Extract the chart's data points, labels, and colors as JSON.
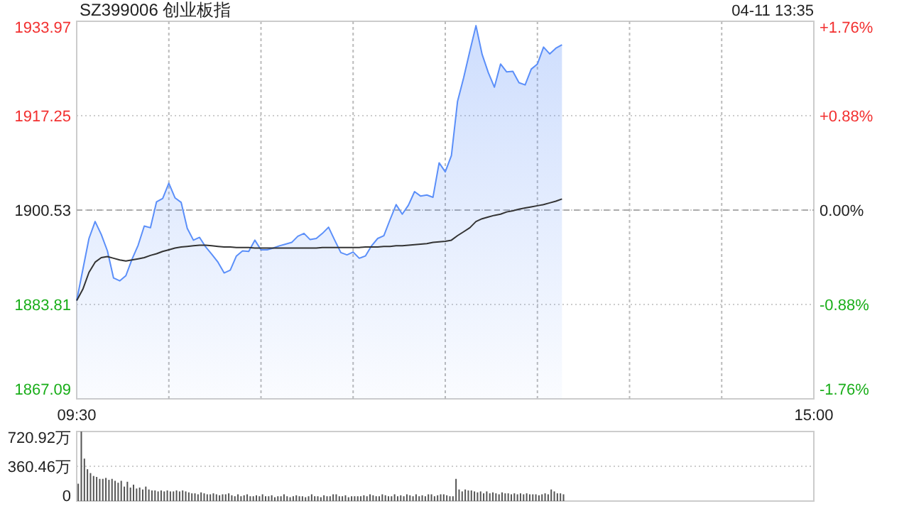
{
  "chart_data": [
    {
      "type": "area",
      "title": "SZ399006 创业板指",
      "annotations": [
        "04-11 13:35"
      ],
      "categories": [
        "09:30",
        null,
        null,
        null,
        null,
        null,
        null,
        null,
        null,
        null,
        null,
        null,
        null,
        null,
        null,
        null,
        null,
        null,
        null,
        null,
        null,
        null,
        null,
        null,
        null,
        null,
        null,
        null,
        null,
        null,
        null,
        null,
        null,
        null,
        null,
        null,
        null,
        null,
        null,
        null,
        null,
        null,
        null,
        null,
        null,
        null,
        null,
        null,
        null,
        null,
        null,
        null,
        null,
        null,
        null,
        null,
        null,
        null,
        null,
        null,
        null,
        null,
        null,
        null,
        null,
        null,
        null,
        null,
        null,
        null,
        null,
        null,
        null,
        null,
        null,
        null,
        null,
        null,
        null,
        null,
        null,
        null,
        null,
        null,
        null,
        null,
        null,
        null,
        null,
        null,
        null,
        null,
        null,
        null,
        null,
        null,
        null,
        null,
        null,
        null,
        null,
        null,
        null,
        null,
        null,
        null,
        null,
        null,
        null,
        null,
        null,
        null,
        null,
        null,
        null,
        null,
        null,
        null,
        null,
        null,
        "15:00"
      ],
      "ylim": [
        1867.09,
        1933.97
      ],
      "yticks": [
        1867.09,
        1883.81,
        1900.53,
        1917.25,
        1933.97
      ],
      "y2lim": [
        -1.76,
        1.76
      ],
      "y2ticks": [
        {
          "value": -1.76,
          "label": "-1.76%"
        },
        {
          "value": -0.88,
          "label": "-0.88%"
        },
        {
          "value": 0,
          "label": "0.00%"
        },
        {
          "value": 0.88,
          "label": "+0.88%"
        },
        {
          "value": 1.76,
          "label": "+1.76%"
        }
      ],
      "grid": true,
      "ref_lines": [
        {
          "axis": "y",
          "value": 1900.53,
          "color": "#aaaaaa",
          "line_style": "dashed"
        }
      ],
      "series": [
        {
          "type": "area",
          "color": "#5b8ff9",
          "values": [
            1884.5,
            1890,
            1895.5,
            1898.5,
            1896.2,
            1893.3,
            1888.5,
            1888,
            1888.9,
            1891.8,
            1894.3,
            1897.7,
            1897.4,
            1902,
            1902.6,
            1905.3,
            1902.7,
            1901.9,
            1897.3,
            1895.2,
            1895.7,
            1894,
            1892.7,
            1891.3,
            1889.4,
            1889.9,
            1892.4,
            1893.3,
            1893.2,
            1895.2,
            1893.5,
            1893.5,
            1893.8,
            1894.2,
            1894.5,
            1894.8,
            1895.9,
            1896.4,
            1895.3,
            1895.5,
            1896.4,
            1897.5,
            1895.2,
            1893,
            1892.6,
            1893.1,
            1892,
            1892.4,
            1894.2,
            1895.5,
            1896,
            1898.8,
            1901.5,
            1899.8,
            1901.4,
            1903.8,
            1903,
            1903.2,
            1902.8,
            1908.9,
            1907.3,
            1910.2,
            1919.8,
            1924,
            1928.7,
            1933.2,
            1928.1,
            1924.9,
            1922.3,
            1926.4,
            1925,
            1925.1,
            1923.1,
            1922.7,
            1925.5,
            1926.4,
            1929.4,
            1928.2,
            1929.2,
            1929.8,
            null,
            null,
            null,
            null,
            null,
            null,
            null,
            null,
            null,
            null,
            null,
            null,
            null,
            null,
            null,
            null,
            null,
            null,
            null,
            null,
            null,
            null,
            null,
            null,
            null,
            null,
            null,
            null,
            null,
            null,
            null,
            null,
            null,
            null,
            null,
            null,
            null,
            null,
            null,
            null,
            null
          ]
        },
        {
          "type": "line",
          "color": "#333333",
          "values": [
            1884.5,
            1886.5,
            1889.5,
            1891.3,
            1892.1,
            1892.3,
            1892,
            1891.7,
            1891.5,
            1891.7,
            1891.9,
            1892.1,
            1892.5,
            1892.8,
            1893.2,
            1893.5,
            1893.8,
            1894,
            1894.1,
            1894.2,
            1894.3,
            1894.3,
            1894.2,
            1894.1,
            1894,
            1894,
            1893.9,
            1893.9,
            1893.9,
            1893.8,
            1893.8,
            1893.8,
            1893.8,
            1893.8,
            1893.8,
            1893.8,
            1893.8,
            1893.8,
            1893.8,
            1893.8,
            1893.9,
            1893.9,
            1893.9,
            1893.9,
            1893.9,
            1893.9,
            1893.9,
            1894,
            1894,
            1894,
            1894.1,
            1894.1,
            1894.2,
            1894.2,
            1894.3,
            1894.4,
            1894.5,
            1894.6,
            1894.8,
            1894.9,
            1895,
            1895.2,
            1896,
            1896.7,
            1897.4,
            1898.5,
            1899,
            1899.3,
            1899.6,
            1899.8,
            1900.2,
            1900.4,
            1900.7,
            1900.9,
            1901.1,
            1901.3,
            1901.5,
            1901.8,
            1902.1,
            1902.5,
            null,
            null,
            null,
            null,
            null,
            null,
            null,
            null,
            null,
            null,
            null,
            null,
            null,
            null,
            null,
            null,
            null,
            null,
            null,
            null,
            null,
            null,
            null,
            null,
            null,
            null,
            null,
            null,
            null,
            null,
            null,
            null,
            null,
            null,
            null,
            null,
            null,
            null,
            null,
            null,
            null
          ]
        }
      ]
    },
    {
      "type": "bar",
      "color": "#555555",
      "grid": "y",
      "tick_labels": "y",
      "ylim": [
        0,
        720.92
      ],
      "yticks": [
        0,
        {
          "value": 360.46,
          "label": "360.46万"
        },
        {
          "value": 720.92,
          "label": "720.92万"
        }
      ],
      "categories": [
        null,
        null,
        null,
        null,
        null,
        null,
        null,
        null,
        null,
        null,
        null,
        null,
        null,
        null,
        null,
        null,
        null,
        null,
        null,
        null,
        null,
        null,
        null,
        null,
        null,
        null,
        null,
        null,
        null,
        null,
        null,
        null,
        null,
        null,
        null,
        null,
        null,
        null,
        null,
        null,
        null,
        null,
        null,
        null,
        null,
        null,
        null,
        null,
        null,
        null,
        null,
        null,
        null,
        null,
        null,
        null,
        null,
        null,
        null,
        null,
        null,
        null,
        null,
        null,
        null,
        null,
        null,
        null,
        null,
        null,
        null,
        null,
        null,
        null,
        null,
        null,
        null,
        null,
        null,
        null,
        null,
        null,
        null,
        null,
        null,
        null,
        null,
        null,
        null,
        null,
        null,
        null,
        null,
        null,
        null,
        null,
        null,
        null,
        null,
        null,
        null,
        null,
        null,
        null,
        null,
        null,
        null,
        null,
        null,
        null,
        null,
        null,
        null,
        null,
        null,
        null,
        null,
        null,
        null,
        null,
        null,
        null,
        null,
        null,
        null,
        null,
        null,
        null,
        null,
        null,
        null,
        null,
        null,
        null,
        null,
        null,
        null,
        null,
        null,
        null,
        null,
        null,
        null,
        null,
        null,
        null,
        null,
        null,
        null,
        null,
        null,
        null,
        null,
        null,
        null,
        null,
        null,
        null,
        null,
        null,
        null,
        null,
        null,
        null,
        null,
        null,
        null,
        null,
        null,
        null,
        null,
        null,
        null,
        null,
        null,
        null,
        null,
        null,
        null,
        null,
        null,
        null,
        null,
        null,
        null,
        null,
        null,
        null,
        null,
        null,
        null,
        null,
        null,
        null,
        null,
        null,
        null,
        null,
        null,
        null,
        null,
        null,
        null,
        null,
        null,
        null,
        null,
        null,
        null,
        null,
        null,
        null,
        null,
        null,
        null,
        null,
        null,
        null,
        null,
        null,
        null,
        null,
        null,
        null,
        null,
        null,
        null,
        null,
        null,
        null,
        null,
        null,
        null,
        null,
        null,
        null,
        null,
        null,
        null,
        null
      ],
      "values": [
        180,
        720,
        440,
        330,
        290,
        260,
        250,
        230,
        230,
        240,
        220,
        230,
        210,
        190,
        210,
        150,
        200,
        140,
        170,
        130,
        140,
        120,
        150,
        120,
        110,
        110,
        100,
        110,
        100,
        110,
        100,
        100,
        110,
        100,
        110,
        100,
        90,
        80,
        80,
        70,
        90,
        80,
        70,
        70,
        80,
        70,
        60,
        70,
        70,
        80,
        60,
        50,
        70,
        50,
        60,
        70,
        50,
        50,
        60,
        50,
        70,
        50,
        50,
        60,
        40,
        50,
        50,
        70,
        50,
        40,
        50,
        60,
        50,
        50,
        40,
        50,
        70,
        50,
        50,
        40,
        60,
        50,
        50,
        70,
        70,
        50,
        50,
        60,
        40,
        50,
        50,
        50,
        50,
        60,
        50,
        70,
        60,
        50,
        50,
        70,
        60,
        50,
        50,
        70,
        50,
        60,
        50,
        70,
        60,
        50,
        70,
        50,
        60,
        50,
        70,
        70,
        50,
        60,
        70,
        70,
        60,
        50,
        50,
        230,
        120,
        100,
        120,
        110,
        110,
        100,
        90,
        100,
        80,
        100,
        80,
        90,
        80,
        70,
        90,
        80,
        80,
        70,
        80,
        70,
        80,
        70,
        80,
        70,
        70,
        70,
        60,
        70,
        80,
        70,
        120,
        100,
        80,
        80,
        70,
        null,
        null,
        null,
        null,
        null,
        null,
        null,
        null,
        null,
        null,
        null,
        null,
        null,
        null,
        null,
        null,
        null,
        null,
        null,
        null,
        null,
        null,
        null,
        null,
        null,
        null,
        null,
        null,
        null,
        null,
        null,
        null,
        null,
        null,
        null,
        null,
        null,
        null,
        null,
        null,
        null,
        null,
        null,
        null,
        null,
        null,
        null,
        null,
        null,
        null,
        null,
        null,
        null,
        null,
        null,
        null,
        null,
        null,
        null,
        null,
        null,
        null,
        null,
        null,
        null,
        null,
        null,
        null,
        null,
        null,
        null,
        null,
        null,
        null,
        null,
        null,
        null,
        null,
        null,
        null,
        null
      ]
    }
  ]
}
